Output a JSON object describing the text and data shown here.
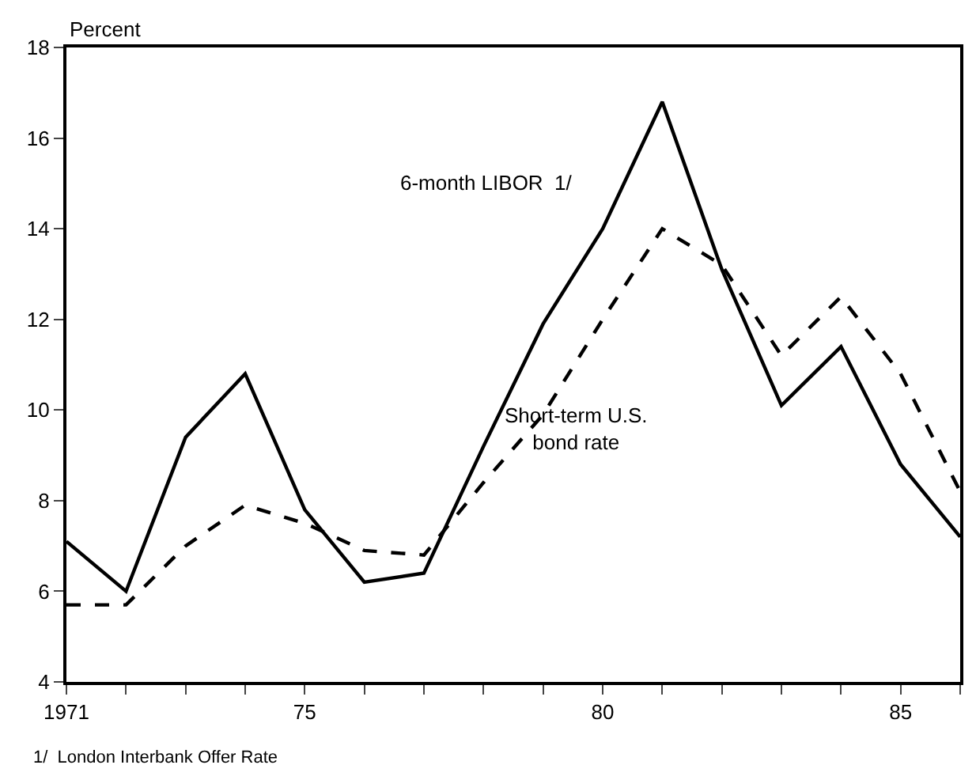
{
  "chart_data": {
    "type": "line",
    "ylabel": "Percent",
    "x": [
      1971,
      1972,
      1973,
      1974,
      1975,
      1976,
      1977,
      1978,
      1979,
      1980,
      1981,
      1982,
      1983,
      1984,
      1985,
      1986
    ],
    "series": [
      {
        "name": "6-month LIBOR  1/",
        "color": "#000000",
        "line_style": "solid",
        "values": [
          7.1,
          6.0,
          9.4,
          10.8,
          7.8,
          6.2,
          6.4,
          9.2,
          11.9,
          14.0,
          16.8,
          13.1,
          10.1,
          11.4,
          8.8,
          7.2
        ]
      },
      {
        "name": "Short-term U.S.\nbond rate",
        "color": "#000000",
        "line_style": "dashed",
        "values": [
          5.7,
          5.7,
          7.0,
          7.9,
          7.5,
          6.9,
          6.8,
          8.4,
          9.9,
          12.0,
          14.0,
          13.2,
          11.2,
          12.5,
          10.8,
          8.2
        ]
      }
    ],
    "xlim": [
      1971,
      1986
    ],
    "xticks": [
      {
        "value": 1971,
        "label": "1971"
      },
      {
        "value": 1972,
        "label": null
      },
      {
        "value": 1973,
        "label": null
      },
      {
        "value": 1974,
        "label": null
      },
      {
        "value": 1975,
        "label": "75"
      },
      {
        "value": 1976,
        "label": null
      },
      {
        "value": 1977,
        "label": null
      },
      {
        "value": 1978,
        "label": null
      },
      {
        "value": 1979,
        "label": null
      },
      {
        "value": 1980,
        "label": "80"
      },
      {
        "value": 1981,
        "label": null
      },
      {
        "value": 1982,
        "label": null
      },
      {
        "value": 1983,
        "label": null
      },
      {
        "value": 1984,
        "label": null
      },
      {
        "value": 1985,
        "label": "85"
      },
      {
        "value": 1986,
        "label": null
      }
    ],
    "ylim": [
      4,
      18
    ],
    "yticks": [
      4,
      6,
      8,
      10,
      12,
      14,
      16,
      18
    ],
    "annotations": [
      "1/  London Interbank Offer Rate"
    ],
    "grid": false,
    "legend": false,
    "marker": "none"
  }
}
